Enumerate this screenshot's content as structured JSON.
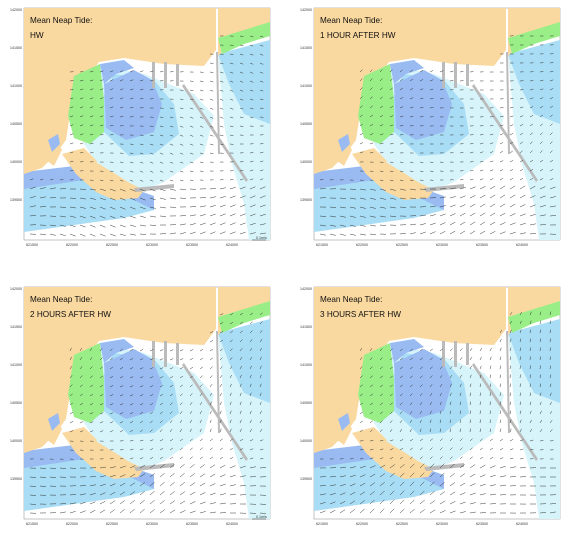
{
  "colors": {
    "land": "#fad9a0",
    "intertidal": "#99ee88",
    "deep_water": "#99bbf2",
    "medium_water": "#a9ddf5",
    "shallow_water": "#d6f4fa",
    "structure": "#bbbbbb",
    "arrow": "#222222"
  },
  "legend_symbol": "vector-arrow",
  "panels": [
    {
      "title_line1": "Mean Neap Tide:",
      "title_line2": "HW",
      "y_ticks": [
        "142000",
        "141500",
        "141000",
        "140500",
        "140000",
        "139500"
      ],
      "x_ticks": [
        "621500",
        "622000",
        "622500",
        "623000",
        "623500",
        "624000"
      ],
      "scale_label": "0.1m/s"
    },
    {
      "title_line1": "Mean Neap Tide:",
      "title_line2": "1 HOUR AFTER HW",
      "y_ticks": [
        "142000",
        "141500",
        "141000",
        "140500",
        "140000",
        "139500"
      ],
      "x_ticks": [
        "621500",
        "622000",
        "622500",
        "623000",
        "623500",
        "624000"
      ],
      "scale_label": ""
    },
    {
      "title_line1": "Mean Neap Tide:",
      "title_line2": "2 HOURS AFTER HW",
      "y_ticks": [
        "142000",
        "141500",
        "141000",
        "140500",
        "140000",
        "139500"
      ],
      "x_ticks": [
        "621500",
        "622000",
        "622500",
        "623000",
        "623500",
        "624000"
      ],
      "scale_label": "0.1m/s"
    },
    {
      "title_line1": "Mean Neap Tide:",
      "title_line2": "3 HOURS AFTER HW",
      "y_ticks": [
        "142000",
        "141500",
        "141000",
        "140500",
        "140000",
        "139500"
      ],
      "x_ticks": [
        "621500",
        "622000",
        "622500",
        "623000",
        "623500",
        "624000"
      ],
      "scale_label": ""
    }
  ]
}
